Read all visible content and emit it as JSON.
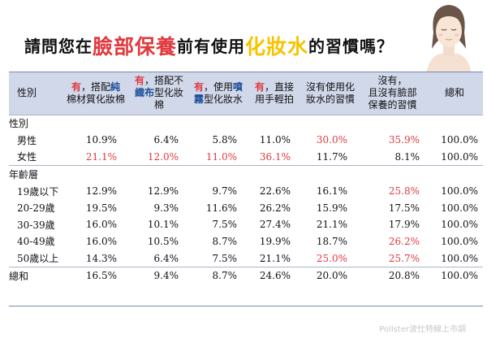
{
  "title": {
    "part1": "請問您在",
    "highlight1": "臉部保養",
    "part2": "前有使用",
    "highlight2": "化妝水",
    "part3": "的習慣嗎？"
  },
  "header": {
    "col0": "性別",
    "col1": {
      "you": "有",
      "rest1": "，搭配",
      "blue1": "純",
      "line2": "棉材質化妝棉"
    },
    "col2": {
      "you": "有",
      "rest1": "，搭配不",
      "line2_blue": "織布",
      "line2": "型化妝棉"
    },
    "col3": {
      "you": "有",
      "rest1": "，使用",
      "blue1": "噴",
      "line2_blue": "霧",
      "line2": "型化妝水"
    },
    "col4": {
      "you": "有",
      "rest1": "，直接",
      "line2": "用手輕拍"
    },
    "col5": {
      "line1": "沒有使用化",
      "line2": "妝水的習慣"
    },
    "col6": {
      "line1": "沒有，",
      "line2": "且沒有臉部",
      "line3": "保養的習慣"
    },
    "col7": "總和"
  },
  "rows": [
    {
      "label": "性別",
      "type": "section",
      "values": []
    },
    {
      "label": "男性",
      "indent": true,
      "values": [
        "10.9%",
        "6.4%",
        "5.8%",
        "11.0%",
        "30.0%",
        "35.9%",
        "100.0%"
      ],
      "red": [
        4,
        5
      ]
    },
    {
      "label": "女性",
      "indent": true,
      "values": [
        "21.1%",
        "12.0%",
        "11.0%",
        "36.1%",
        "11.7%",
        "8.1%",
        "100.0%"
      ],
      "red": [
        0,
        1,
        2,
        3
      ]
    },
    {
      "label": "年齡層",
      "type": "section",
      "values": []
    },
    {
      "label": "19歲以下",
      "indent": true,
      "values": [
        "12.9%",
        "12.9%",
        "9.7%",
        "22.6%",
        "16.1%",
        "25.8%",
        "100.0%"
      ],
      "red": [
        5
      ]
    },
    {
      "label": "20-29歲",
      "indent": true,
      "values": [
        "19.5%",
        "9.3%",
        "11.6%",
        "26.2%",
        "15.9%",
        "17.5%",
        "100.0%"
      ],
      "red": []
    },
    {
      "label": "30-39歲",
      "indent": true,
      "values": [
        "16.0%",
        "10.1%",
        "7.5%",
        "27.4%",
        "21.1%",
        "17.9%",
        "100.0%"
      ],
      "red": []
    },
    {
      "label": "40-49歲",
      "indent": true,
      "values": [
        "16.0%",
        "10.5%",
        "8.7%",
        "19.9%",
        "18.7%",
        "26.2%",
        "100.0%"
      ],
      "red": [
        5
      ]
    },
    {
      "label": "50歲以上",
      "indent": true,
      "values": [
        "14.3%",
        "6.4%",
        "7.5%",
        "21.1%",
        "25.0%",
        "25.7%",
        "100.0%"
      ],
      "red": [
        4,
        5
      ]
    },
    {
      "label": "總和",
      "type": "section",
      "values": [
        "16.5%",
        "9.4%",
        "8.7%",
        "24.6%",
        "20.0%",
        "20.8%",
        "100.0%"
      ],
      "red": []
    }
  ],
  "watermark": "Pollster波仕特線上市調",
  "colors": {
    "red": "#e0393e",
    "yellow": "#f7c300",
    "header_bg": "#d1d8ea",
    "blue": "#1d4f9a"
  }
}
